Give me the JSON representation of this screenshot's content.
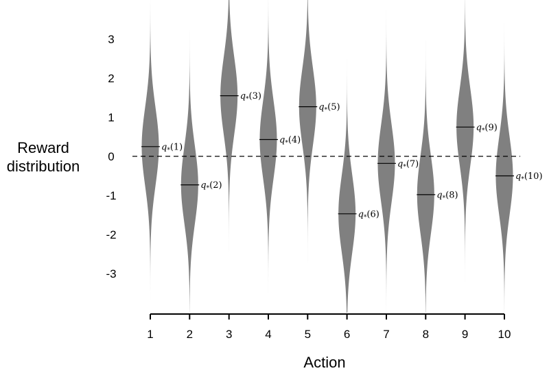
{
  "chart_data": {
    "type": "violin",
    "xlabel": "Action",
    "ylabel_lines": [
      "Reward",
      "distribution"
    ],
    "x_ticks": [
      "1",
      "2",
      "3",
      "4",
      "5",
      "6",
      "7",
      "8",
      "9",
      "10"
    ],
    "y_ticks": [
      "3",
      "2",
      "1",
      "0",
      "-1",
      "-2",
      "-3"
    ],
    "ylim": [
      -4.0,
      4.0
    ],
    "reference_line": 0,
    "fill_color": "#808080",
    "series": [
      {
        "action": 1,
        "mean": 0.25,
        "label_base": "q",
        "label_sub": "*",
        "label_arg": "(1)"
      },
      {
        "action": 2,
        "mean": -0.73,
        "label_base": "q",
        "label_sub": "*",
        "label_arg": "(2)"
      },
      {
        "action": 3,
        "mean": 1.55,
        "label_base": "q",
        "label_sub": "*",
        "label_arg": "(3)"
      },
      {
        "action": 4,
        "mean": 0.43,
        "label_base": "q",
        "label_sub": "*",
        "label_arg": "(4)"
      },
      {
        "action": 5,
        "mean": 1.27,
        "label_base": "q",
        "label_sub": "*",
        "label_arg": "(5)"
      },
      {
        "action": 6,
        "mean": -1.47,
        "label_base": "q",
        "label_sub": "*",
        "label_arg": "(6)"
      },
      {
        "action": 7,
        "mean": -0.18,
        "label_base": "q",
        "label_sub": "*",
        "label_arg": "(7)"
      },
      {
        "action": 8,
        "mean": -0.98,
        "label_base": "q",
        "label_sub": "*",
        "label_arg": "(8)"
      },
      {
        "action": 9,
        "mean": 0.75,
        "label_base": "q",
        "label_sub": "*",
        "label_arg": "(9)"
      },
      {
        "action": 10,
        "mean": -0.5,
        "label_base": "q",
        "label_sub": "*",
        "label_arg": "(10)"
      }
    ]
  }
}
